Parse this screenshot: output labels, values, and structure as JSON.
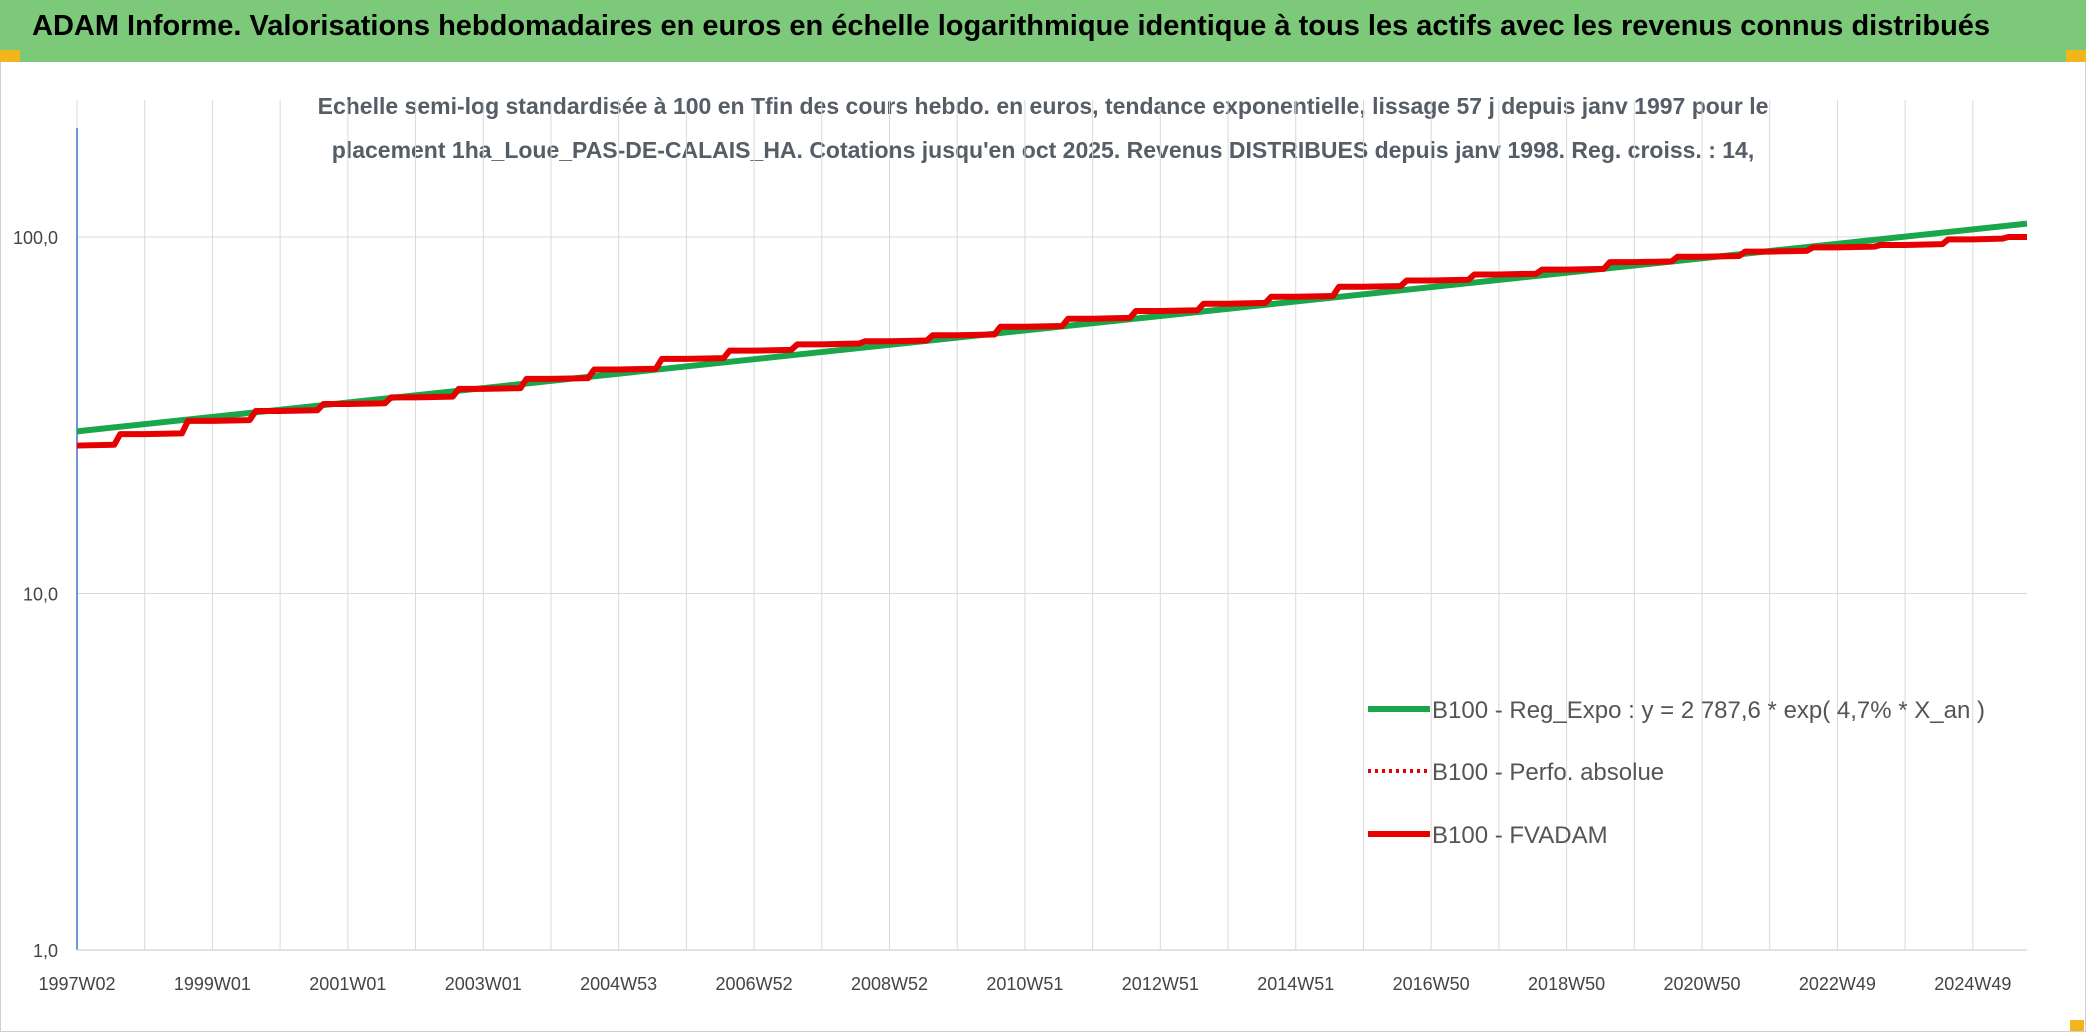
{
  "header": {
    "title": "ADAM Informe. Valorisations hebdomadaires en euros en échelle logarithmique identique à tous les actifs avec les revenus connus distribués"
  },
  "colors": {
    "banner": "#7dc97a",
    "corner": "#f2b51c",
    "trend": "#1aa64b",
    "perf": "#e60000",
    "fvadam": "#e60000",
    "axis": "#4472c4",
    "grid": "#d9d9d9"
  },
  "chart_data": {
    "type": "line",
    "title_line1": "Echelle semi-log standardisée à 100 en Tfin des cours hebdo. en euros, tendance exponentielle, lissage 57 j depuis janv 1997 pour le",
    "title_line2": "placement 1ha_Loue_PAS-DE-CALAIS_HA. Cotations jusqu'en oct 2025. Revenus DISTRIBUES depuis janv 1998. Reg. croiss. : 14,",
    "yscale": "log",
    "ylim": [
      1,
      200
    ],
    "y_ticks": [
      1,
      10,
      100
    ],
    "y_tick_labels": [
      "1,0",
      "10,0",
      "100,0"
    ],
    "xlim": [
      1997.0,
      2025.8
    ],
    "x_ticks": [
      1997.0,
      1999.0,
      2001.0,
      2003.0,
      2005.0,
      2007.0,
      2009.0,
      2011.0,
      2013.0,
      2015.0,
      2017.0,
      2019.0,
      2021.0,
      2023.0,
      2025.0
    ],
    "x_tick_labels": [
      "1997W02",
      "1999W01",
      "2001W01",
      "2003W01",
      "2004W53",
      "2006W52",
      "2008W52",
      "2010W51",
      "2012W51",
      "2014W51",
      "2016W50",
      "2018W50",
      "2020W50",
      "2022W49",
      "2024W49"
    ],
    "x_gridlines": [
      1997.0,
      1998.0,
      1999.0,
      2000.0,
      2001.0,
      2002.0,
      2003.0,
      2004.0,
      2005.0,
      2006.0,
      2007.0,
      2008.0,
      2009.0,
      2010.0,
      2011.0,
      2012.0,
      2013.0,
      2014.0,
      2015.0,
      2016.0,
      2017.0,
      2018.0,
      2019.0,
      2020.0,
      2021.0,
      2022.0,
      2023.0,
      2024.0,
      2025.0
    ],
    "series": [
      {
        "name": "B100 - Reg_Expo : y = 2 787,6 * exp( 4,7% *  X_an )",
        "style": "solid-green",
        "x": [
          1997.0,
          2025.8
        ],
        "values": [
          28.5,
          109.0
        ]
      },
      {
        "name": "B100 - Perfo. absolue",
        "style": "dotted-red",
        "x": [
          1997.0,
          1998.0,
          1999.0,
          2000.0,
          2001.0,
          2002.0,
          2003.0,
          2004.0,
          2005.0,
          2006.0,
          2007.0,
          2008.0,
          2009.0,
          2010.0,
          2011.0,
          2012.0,
          2013.0,
          2014.0,
          2015.0,
          2016.0,
          2017.0,
          2018.0,
          2019.0,
          2020.0,
          2021.0,
          2022.0,
          2023.0,
          2024.0,
          2025.0,
          2025.8
        ],
        "values": [
          26.0,
          28.0,
          30.5,
          32.5,
          34.0,
          35.5,
          37.5,
          40.0,
          42.5,
          45.5,
          48.0,
          50.0,
          51.0,
          53.0,
          56.0,
          59.0,
          62.0,
          65.0,
          68.0,
          72.5,
          75.5,
          78.5,
          81.0,
          85.0,
          88.0,
          91.0,
          93.5,
          95.0,
          98.5,
          100.0
        ]
      },
      {
        "name": "B100 - FVADAM",
        "style": "solid-red",
        "x": [
          1997.0,
          1998.0,
          1999.0,
          2000.0,
          2001.0,
          2002.0,
          2003.0,
          2004.0,
          2005.0,
          2006.0,
          2007.0,
          2008.0,
          2009.0,
          2010.0,
          2011.0,
          2012.0,
          2013.0,
          2014.0,
          2015.0,
          2016.0,
          2017.0,
          2018.0,
          2019.0,
          2020.0,
          2021.0,
          2022.0,
          2023.0,
          2024.0,
          2025.0,
          2025.8
        ],
        "values": [
          26.0,
          28.0,
          30.5,
          32.5,
          34.0,
          35.5,
          37.5,
          40.0,
          42.5,
          45.5,
          48.0,
          50.0,
          51.0,
          53.0,
          56.0,
          59.0,
          62.0,
          65.0,
          68.0,
          72.5,
          75.5,
          78.5,
          81.0,
          85.0,
          88.0,
          91.0,
          93.5,
          95.0,
          98.5,
          100.0
        ]
      }
    ],
    "legend_position": "right-middle"
  }
}
